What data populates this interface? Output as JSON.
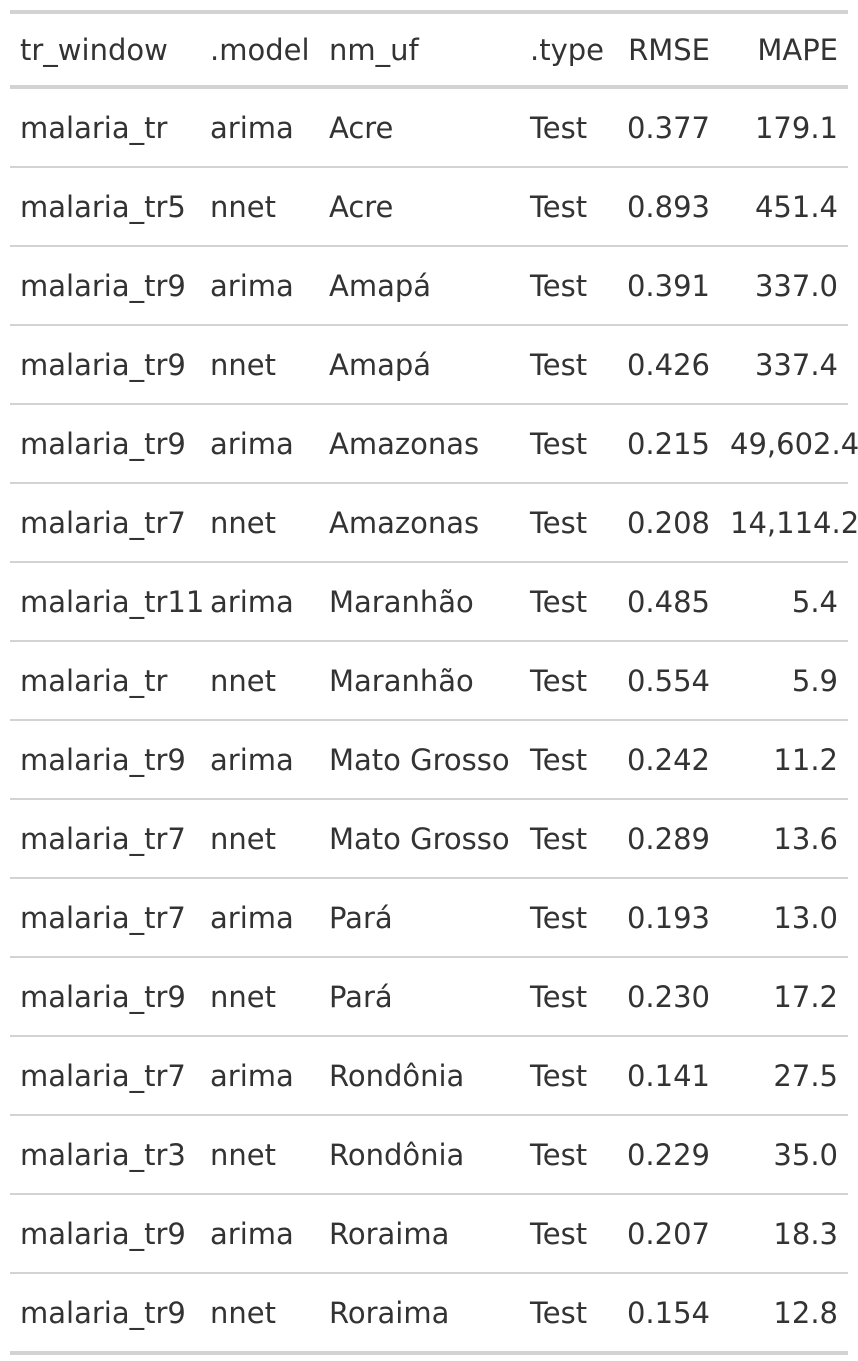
{
  "table": {
    "columns": [
      "tr_window",
      ".model",
      "nm_uf",
      ".type",
      "RMSE",
      "MAPE"
    ],
    "rows": [
      [
        "malaria_tr",
        "arima",
        "Acre",
        "Test",
        "0.377",
        "179.1"
      ],
      [
        "malaria_tr5",
        "nnet",
        "Acre",
        "Test",
        "0.893",
        "451.4"
      ],
      [
        "malaria_tr9",
        "arima",
        "Amapá",
        "Test",
        "0.391",
        "337.0"
      ],
      [
        "malaria_tr9",
        "nnet",
        "Amapá",
        "Test",
        "0.426",
        "337.4"
      ],
      [
        "malaria_tr9",
        "arima",
        "Amazonas",
        "Test",
        "0.215",
        "49,602.4"
      ],
      [
        "malaria_tr7",
        "nnet",
        "Amazonas",
        "Test",
        "0.208",
        "14,114.2"
      ],
      [
        "malaria_tr11",
        "arima",
        "Maranhão",
        "Test",
        "0.485",
        "5.4"
      ],
      [
        "malaria_tr",
        "nnet",
        "Maranhão",
        "Test",
        "0.554",
        "5.9"
      ],
      [
        "malaria_tr9",
        "arima",
        "Mato Grosso",
        "Test",
        "0.242",
        "11.2"
      ],
      [
        "malaria_tr7",
        "nnet",
        "Mato Grosso",
        "Test",
        "0.289",
        "13.6"
      ],
      [
        "malaria_tr7",
        "arima",
        "Pará",
        "Test",
        "0.193",
        "13.0"
      ],
      [
        "malaria_tr9",
        "nnet",
        "Pará",
        "Test",
        "0.230",
        "17.2"
      ],
      [
        "malaria_tr7",
        "arima",
        "Rondônia",
        "Test",
        "0.141",
        "27.5"
      ],
      [
        "malaria_tr3",
        "nnet",
        "Rondônia",
        "Test",
        "0.229",
        "35.0"
      ],
      [
        "malaria_tr9",
        "arima",
        "Roraima",
        "Test",
        "0.207",
        "18.3"
      ],
      [
        "malaria_tr9",
        "nnet",
        "Roraima",
        "Test",
        "0.154",
        "12.8"
      ]
    ]
  }
}
